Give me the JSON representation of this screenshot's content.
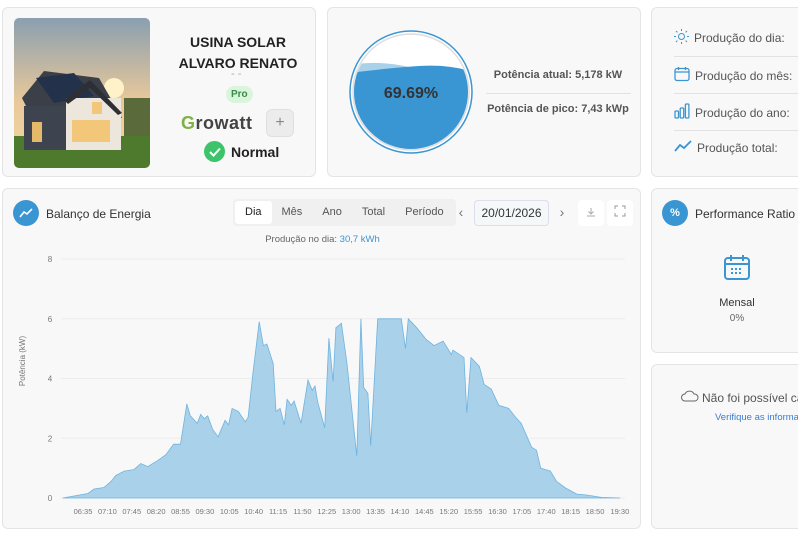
{
  "plant": {
    "name": "USINA SOLAR ALVARO RENATO",
    "subtitle": "- -",
    "badge": "Pro",
    "brand": {
      "g": "G",
      "rest": "rowatt"
    },
    "add_label": "+",
    "status": "Normal",
    "status_color": "#3dc46a"
  },
  "power": {
    "percent_label": "69.69%",
    "percent": 69.69,
    "current": "Potência atual: 5,178 kW",
    "peak": "Potência de pico: 7,43 kWp",
    "accent": "#3a95d3"
  },
  "production": {
    "items": [
      {
        "icon": "sun-icon",
        "label": "Produção do dia:"
      },
      {
        "icon": "calendar-icon",
        "label": "Produção do mês:"
      },
      {
        "icon": "bar-chart-icon",
        "label": "Produção do ano:"
      },
      {
        "icon": "trend-line-icon",
        "label": "Produção total:"
      }
    ]
  },
  "energy": {
    "title": "Balanço de Energia",
    "tabs": [
      "Dia",
      "Mês",
      "Ano",
      "Total",
      "Período"
    ],
    "active_tab": "Dia",
    "prev": "‹",
    "next": "›",
    "date": "20/01/2026",
    "production_label": "Produção no dia:",
    "production_value": "30,7 kWh"
  },
  "chart_data": {
    "type": "area",
    "ylabel": "Potência (kW)",
    "ylim": [
      0,
      8
    ],
    "yticks": [
      "0",
      "2",
      "4",
      "6",
      "8"
    ],
    "xticks": [
      "06:35",
      "07:10",
      "07:45",
      "08:20",
      "08:55",
      "09:30",
      "10:05",
      "10:40",
      "11:15",
      "11:50",
      "12:25",
      "13:00",
      "13:35",
      "14:10",
      "14:45",
      "15:20",
      "15:55",
      "16:30",
      "17:05",
      "17:40",
      "18:15",
      "18:50",
      "19:30"
    ],
    "grid": true,
    "color": "#a9d1ea",
    "x": [
      "06:06",
      "06:42",
      "06:51",
      "07:05",
      "07:15",
      "07:22",
      "07:34",
      "07:48",
      "07:58",
      "08:08",
      "08:22",
      "08:34",
      "08:45",
      "08:55",
      "09:04",
      "09:09",
      "09:19",
      "09:24",
      "09:29",
      "09:34",
      "09:41",
      "09:49",
      "09:59",
      "10:04",
      "10:09",
      "10:18",
      "10:28",
      "10:32",
      "10:39",
      "10:48",
      "10:54",
      "10:59",
      "11:08",
      "11:12",
      "11:18",
      "11:24",
      "11:28",
      "11:34",
      "11:38",
      "11:48",
      "11:58",
      "12:04",
      "12:08",
      "12:12",
      "12:22",
      "12:28",
      "12:34",
      "12:38",
      "12:46",
      "12:54",
      "13:08",
      "13:14",
      "13:18",
      "13:24",
      "13:28",
      "13:38",
      "14:12",
      "14:18",
      "14:22",
      "14:34",
      "14:48",
      "14:59",
      "15:12",
      "15:24",
      "15:26",
      "15:42",
      "15:46",
      "15:52",
      "16:04",
      "16:11",
      "16:21",
      "16:32",
      "16:46",
      "16:56",
      "17:04",
      "17:19",
      "17:26",
      "17:32",
      "17:46",
      "17:55",
      "18:08",
      "18:24",
      "18:38",
      "18:59",
      "19:26"
    ],
    "y": [
      0,
      0.15,
      0.3,
      0.35,
      0.55,
      0.75,
      0.9,
      0.95,
      1.15,
      1.05,
      1.25,
      1.45,
      1.8,
      1.8,
      3.15,
      2.75,
      2.5,
      2.8,
      2.65,
      2.75,
      2.3,
      2.05,
      2.6,
      2.45,
      3.0,
      2.9,
      2.55,
      2.7,
      4.2,
      5.9,
      5.1,
      5.15,
      4.5,
      2.9,
      3.0,
      2.45,
      3.3,
      3.1,
      3.25,
      2.5,
      3.95,
      3.6,
      3.75,
      3.2,
      2.35,
      5.35,
      3.9,
      5.7,
      5.85,
      4.5,
      1.4,
      6.0,
      3.7,
      3.5,
      1.75,
      6.0,
      6.0,
      5.0,
      6.0,
      5.7,
      5.3,
      5.1,
      5.25,
      4.8,
      4.95,
      4.7,
      2.85,
      4.7,
      4.4,
      3.8,
      3.65,
      3.1,
      3.0,
      2.7,
      2.5,
      1.7,
      1.6,
      1.0,
      0.9,
      0.55,
      0.33,
      0.13,
      0.1,
      0.02,
      0
    ]
  },
  "performance": {
    "title": "Performance Ratio",
    "icon_label": "%",
    "period": "Mensal",
    "value": "0%"
  },
  "weather": {
    "error": "Não foi possível carregar",
    "link": "Verifique as informações"
  }
}
